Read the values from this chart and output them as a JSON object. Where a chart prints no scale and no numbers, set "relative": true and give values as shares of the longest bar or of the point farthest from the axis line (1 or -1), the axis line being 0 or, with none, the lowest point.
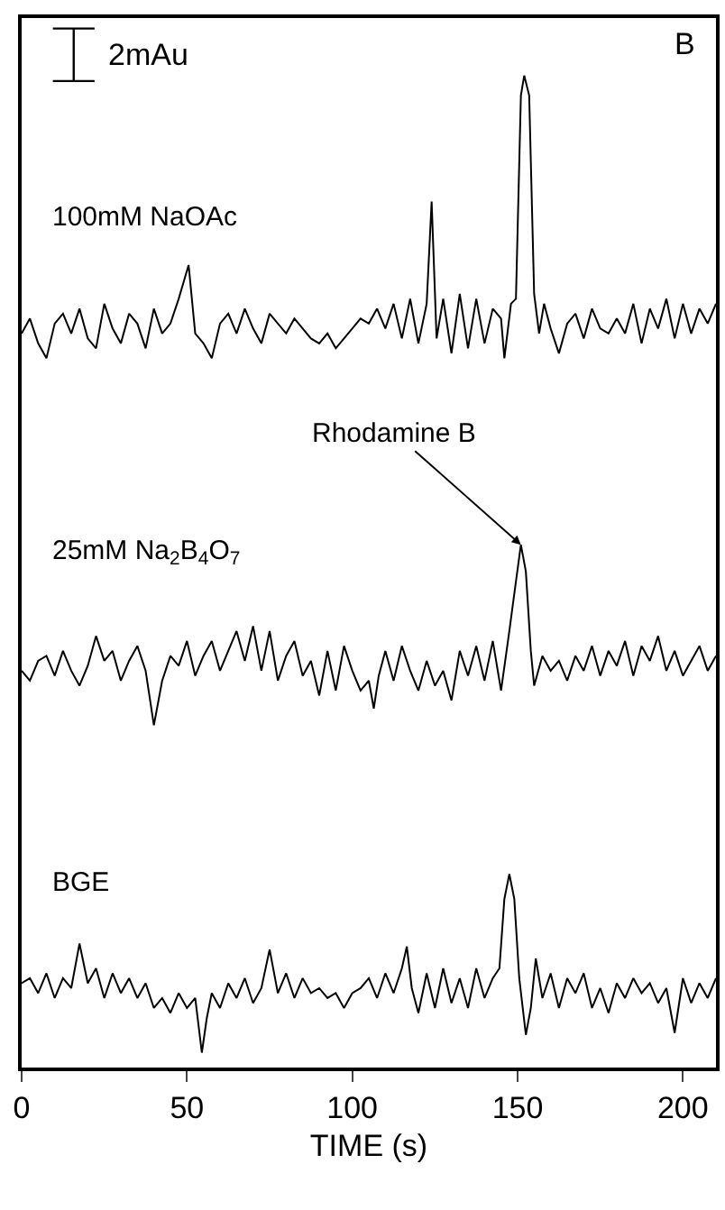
{
  "chart_data": {
    "type": "line",
    "relative": true,
    "xlabel": "TIME (s)",
    "xlim": [
      0,
      210
    ],
    "xticks": [
      0,
      50,
      100,
      150,
      200
    ],
    "tick_labels": "x",
    "legend": false,
    "marker": "none",
    "line_style": "solid",
    "annotations": [
      "2mAu",
      "B",
      {
        "text": "Rhodamine B",
        "x": 151,
        "y": 0.527
      }
    ],
    "series": [
      {
        "name": "100mM NaOAc",
        "color": "#000000",
        "x": [
          0,
          2.5,
          5,
          7.5,
          10,
          12.5,
          15,
          17.5,
          20,
          22.5,
          25,
          27.5,
          30,
          32.5,
          35,
          37.5,
          40,
          42.5,
          45,
          47.5,
          50.5,
          52.5,
          55,
          57.5,
          60,
          62.5,
          65,
          67.5,
          70,
          72.5,
          75,
          77.5,
          80,
          82.5,
          85,
          87.5,
          90,
          92.5,
          95,
          97.5,
          100,
          102.5,
          105,
          107.5,
          110,
          112.5,
          115,
          117.5,
          120,
          122.5,
          124,
          125.5,
          127.5,
          130,
          132.5,
          135,
          137.5,
          140,
          142.5,
          145,
          146,
          148,
          149.5,
          151,
          152,
          153.5,
          155,
          156.5,
          158,
          160,
          162.5,
          165,
          167.5,
          170,
          172.5,
          175,
          177.5,
          180,
          182.5,
          185,
          187.5,
          190,
          192.5,
          195,
          197.5,
          200,
          202.5,
          205,
          207.5,
          210
        ],
        "values": [
          0.74,
          0.755,
          0.73,
          0.715,
          0.75,
          0.76,
          0.74,
          0.765,
          0.735,
          0.725,
          0.77,
          0.745,
          0.73,
          0.76,
          0.75,
          0.725,
          0.765,
          0.74,
          0.75,
          0.775,
          0.809,
          0.74,
          0.73,
          0.715,
          0.75,
          0.76,
          0.74,
          0.765,
          0.745,
          0.73,
          0.76,
          0.75,
          0.74,
          0.755,
          0.745,
          0.735,
          0.73,
          0.74,
          0.725,
          0.735,
          0.745,
          0.755,
          0.75,
          0.765,
          0.745,
          0.77,
          0.735,
          0.775,
          0.73,
          0.77,
          0.873,
          0.735,
          0.775,
          0.72,
          0.78,
          0.725,
          0.775,
          0.73,
          0.765,
          0.755,
          0.715,
          0.77,
          0.775,
          0.98,
          1.0,
          0.98,
          0.78,
          0.74,
          0.77,
          0.745,
          0.72,
          0.75,
          0.76,
          0.735,
          0.765,
          0.745,
          0.74,
          0.755,
          0.74,
          0.77,
          0.73,
          0.765,
          0.745,
          0.775,
          0.735,
          0.77,
          0.74,
          0.765,
          0.75,
          0.77
        ]
      },
      {
        "name": "25mM Na$_{2}$B$_{4}$O$_{7}$",
        "color": "#000000",
        "x": [
          0,
          2.5,
          5,
          7.5,
          10,
          12.5,
          15,
          17.5,
          20,
          22.5,
          25,
          27.5,
          30,
          32.5,
          35,
          37.5,
          40,
          42.5,
          45,
          47.5,
          50,
          52.5,
          55,
          57.5,
          60,
          62.5,
          65,
          67.5,
          70,
          72.5,
          75,
          77.5,
          80,
          82.5,
          85,
          87.5,
          90,
          92.5,
          95,
          97.5,
          100,
          102.5,
          105,
          106.5,
          108,
          110,
          112.5,
          115,
          117.5,
          120,
          122.5,
          125,
          127.5,
          130,
          132.5,
          135,
          137.5,
          140,
          142.5,
          145,
          147.5,
          149.5,
          151,
          152.5,
          154,
          155,
          157.5,
          160,
          162.5,
          165,
          167.5,
          170,
          172.5,
          175,
          177.5,
          180,
          182.5,
          185,
          187.5,
          190,
          192.5,
          195,
          197.5,
          200,
          202.5,
          205,
          207.5,
          210
        ],
        "values": [
          0.4,
          0.39,
          0.41,
          0.415,
          0.395,
          0.42,
          0.4,
          0.385,
          0.405,
          0.435,
          0.41,
          0.42,
          0.39,
          0.41,
          0.425,
          0.4,
          0.345,
          0.39,
          0.415,
          0.405,
          0.43,
          0.395,
          0.415,
          0.43,
          0.4,
          0.42,
          0.44,
          0.41,
          0.445,
          0.4,
          0.44,
          0.39,
          0.415,
          0.43,
          0.395,
          0.41,
          0.375,
          0.42,
          0.38,
          0.425,
          0.4,
          0.38,
          0.39,
          0.362,
          0.395,
          0.42,
          0.39,
          0.425,
          0.4,
          0.38,
          0.41,
          0.385,
          0.4,
          0.37,
          0.42,
          0.395,
          0.425,
          0.39,
          0.43,
          0.38,
          0.44,
          0.49,
          0.527,
          0.5,
          0.42,
          0.385,
          0.415,
          0.4,
          0.41,
          0.39,
          0.415,
          0.4,
          0.425,
          0.395,
          0.42,
          0.405,
          0.43,
          0.395,
          0.425,
          0.41,
          0.435,
          0.4,
          0.42,
          0.395,
          0.41,
          0.425,
          0.4,
          0.415
        ]
      },
      {
        "name": "BGE",
        "color": "#000000",
        "x": [
          0,
          2.5,
          5,
          7.5,
          10,
          12.5,
          15,
          17.5,
          20,
          22.5,
          25,
          27.5,
          30,
          32.5,
          35,
          37.5,
          40,
          42.5,
          45,
          47.5,
          50,
          52.5,
          54.5,
          56,
          57.5,
          60,
          62.5,
          65,
          67.5,
          70,
          72.5,
          75,
          77.5,
          80,
          82.5,
          85,
          87.5,
          90,
          92.5,
          95,
          97.5,
          100,
          102.5,
          105,
          107.5,
          110,
          112.5,
          115,
          116.5,
          118,
          120,
          122.5,
          125,
          127.5,
          130,
          132.5,
          135,
          137.5,
          140,
          142.5,
          144.5,
          146,
          147.5,
          149,
          150.5,
          152.5,
          154,
          155.5,
          157.5,
          160,
          162.5,
          165,
          167.5,
          170,
          172.5,
          175,
          177.5,
          180,
          182.5,
          185,
          187.5,
          190,
          192.5,
          195,
          197.5,
          200,
          202.5,
          205,
          207.5,
          210
        ],
        "values": [
          0.085,
          0.09,
          0.075,
          0.095,
          0.07,
          0.09,
          0.08,
          0.125,
          0.085,
          0.1,
          0.07,
          0.095,
          0.075,
          0.09,
          0.07,
          0.085,
          0.06,
          0.07,
          0.055,
          0.075,
          0.06,
          0.07,
          0.015,
          0.05,
          0.075,
          0.06,
          0.085,
          0.07,
          0.09,
          0.065,
          0.08,
          0.119,
          0.075,
          0.095,
          0.07,
          0.09,
          0.075,
          0.08,
          0.07,
          0.075,
          0.06,
          0.075,
          0.08,
          0.09,
          0.07,
          0.095,
          0.075,
          0.1,
          0.122,
          0.08,
          0.055,
          0.095,
          0.06,
          0.1,
          0.065,
          0.09,
          0.06,
          0.1,
          0.07,
          0.09,
          0.1,
          0.17,
          0.195,
          0.17,
          0.09,
          0.033,
          0.06,
          0.11,
          0.07,
          0.095,
          0.06,
          0.09,
          0.075,
          0.095,
          0.06,
          0.08,
          0.055,
          0.085,
          0.07,
          0.09,
          0.075,
          0.085,
          0.065,
          0.08,
          0.035,
          0.09,
          0.065,
          0.085,
          0.07,
          0.09
        ]
      }
    ]
  }
}
